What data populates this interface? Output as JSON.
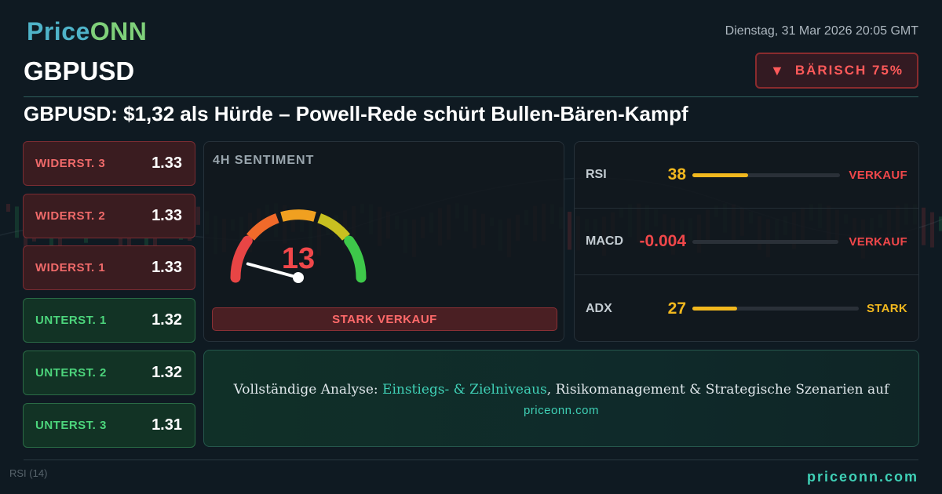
{
  "brand": {
    "logo_part1": "Price",
    "logo_part2": "ONN",
    "footer": "priceonn.com"
  },
  "header": {
    "ticker": "GBPUSD",
    "datetime": "Dienstag, 31 Mar 2026 20:05 GMT",
    "headline": "GBPUSD: $1,32 als Hürde – Powell-Rede schürt Bullen-Bären-Kampf"
  },
  "badge": {
    "icon": "triangle-down-icon",
    "label": "BÄRISCH 75%",
    "color": "#ff5a5a"
  },
  "levels": [
    {
      "label": "WIDERST. 3",
      "value": "1.33",
      "type": "resistance"
    },
    {
      "label": "WIDERST. 2",
      "value": "1.33",
      "type": "resistance"
    },
    {
      "label": "WIDERST. 1",
      "value": "1.33",
      "type": "resistance"
    },
    {
      "label": "UNTERST. 1",
      "value": "1.32",
      "type": "support"
    },
    {
      "label": "UNTERST. 2",
      "value": "1.32",
      "type": "support"
    },
    {
      "label": "UNTERST. 3",
      "value": "1.31",
      "type": "support"
    }
  ],
  "sentiment": {
    "title": "4H SENTIMENT",
    "value": "13",
    "value_num": 13,
    "max": 100,
    "label": "STARK VERKAUF"
  },
  "indicators": [
    {
      "name": "RSI",
      "value": "38",
      "level": 0.38,
      "signal": "VERKAUF",
      "value_color": "#f2b81e",
      "bar_color": "#f2b81e",
      "signal_color": "#f0474a"
    },
    {
      "name": "MACD",
      "value": "-0.004",
      "level": 0.0,
      "signal": "VERKAUF",
      "value_color": "#f0474a",
      "bar_color": "#f0474a",
      "signal_color": "#f0474a"
    },
    {
      "name": "ADX",
      "value": "27",
      "level": 0.27,
      "signal": "STARK",
      "value_color": "#f2b81e",
      "bar_color": "#f2b81e",
      "signal_color": "#f2b81e"
    }
  ],
  "cta": {
    "prefix": "Vollständige Analyse: ",
    "highlight": "Einstiegs- & Zielniveaus",
    "suffix": ", Risikomanagement & Strategische Szenarien auf",
    "link": "priceonn.com"
  },
  "background": {
    "rsi_label": "RSI",
    "rsi_period": "(14)"
  }
}
